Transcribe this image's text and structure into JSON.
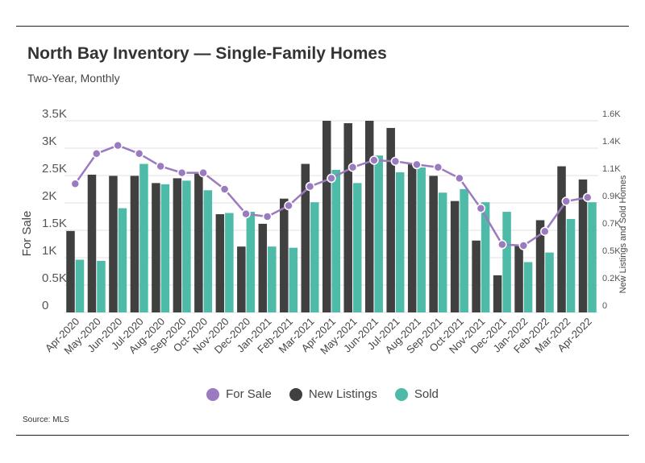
{
  "header": {
    "title": "North Bay Inventory — Single-Family Homes",
    "subtitle": "Two-Year, Monthly"
  },
  "source": "Source:  MLS",
  "colors": {
    "for_sale": "#9b7bbf",
    "new_listings": "#404040",
    "sold": "#4dbba8",
    "grid": "#e2e2e2"
  },
  "chart_data": {
    "type": "bar",
    "categories": [
      "Apr-2020",
      "May-2020",
      "Jun-2020",
      "Jul-2020",
      "Aug-2020",
      "Sep-2020",
      "Oct-2020",
      "Nov-2020",
      "Dec-2020",
      "Jan-2021",
      "Feb-2021",
      "Mar-2021",
      "Apr-2021",
      "May-2021",
      "Jun-2021",
      "Jul-2021",
      "Aug-2021",
      "Sep-2021",
      "Oct-2021",
      "Nov-2021",
      "Dec-2021",
      "Jan-2022",
      "Feb-2022",
      "Mar-2022",
      "Apr-2022"
    ],
    "ylabel": "For Sale",
    "y2label": "New Listings and Sold Homes",
    "ylim": [
      0,
      3500
    ],
    "y2lim": [
      0,
      1600
    ],
    "yticks": [
      "0",
      "0.5K",
      "1K",
      "1.5K",
      "2K",
      "2.5K",
      "3K",
      "3.5K"
    ],
    "y2ticks": [
      "0",
      "0.2K",
      "0.5K",
      "0.7K",
      "0.9K",
      "1.1K",
      "1.4K",
      "1.6K"
    ],
    "legend_position": "bottom",
    "series": [
      {
        "name": "For Sale",
        "type": "line",
        "axis": "left",
        "values": [
          2350,
          2900,
          3050,
          2900,
          2670,
          2550,
          2550,
          2250,
          1800,
          1750,
          1950,
          2300,
          2450,
          2650,
          2780,
          2760,
          2700,
          2650,
          2450,
          1900,
          1240,
          1220,
          1480,
          2030,
          2100
        ]
      },
      {
        "name": "New Listings",
        "type": "bar",
        "axis": "right",
        "values": [
          680,
          1150,
          1140,
          1140,
          1080,
          1120,
          1160,
          820,
          550,
          740,
          950,
          1240,
          1600,
          1580,
          1600,
          1540,
          1240,
          1140,
          930,
          600,
          310,
          560,
          770,
          1220,
          1110
        ]
      },
      {
        "name": "Sold",
        "type": "bar",
        "axis": "right",
        "values": [
          440,
          430,
          870,
          1240,
          1070,
          1100,
          1020,
          830,
          840,
          550,
          540,
          920,
          1190,
          1080,
          1310,
          1170,
          1210,
          1000,
          1030,
          920,
          840,
          420,
          500,
          780,
          920
        ]
      }
    ]
  }
}
